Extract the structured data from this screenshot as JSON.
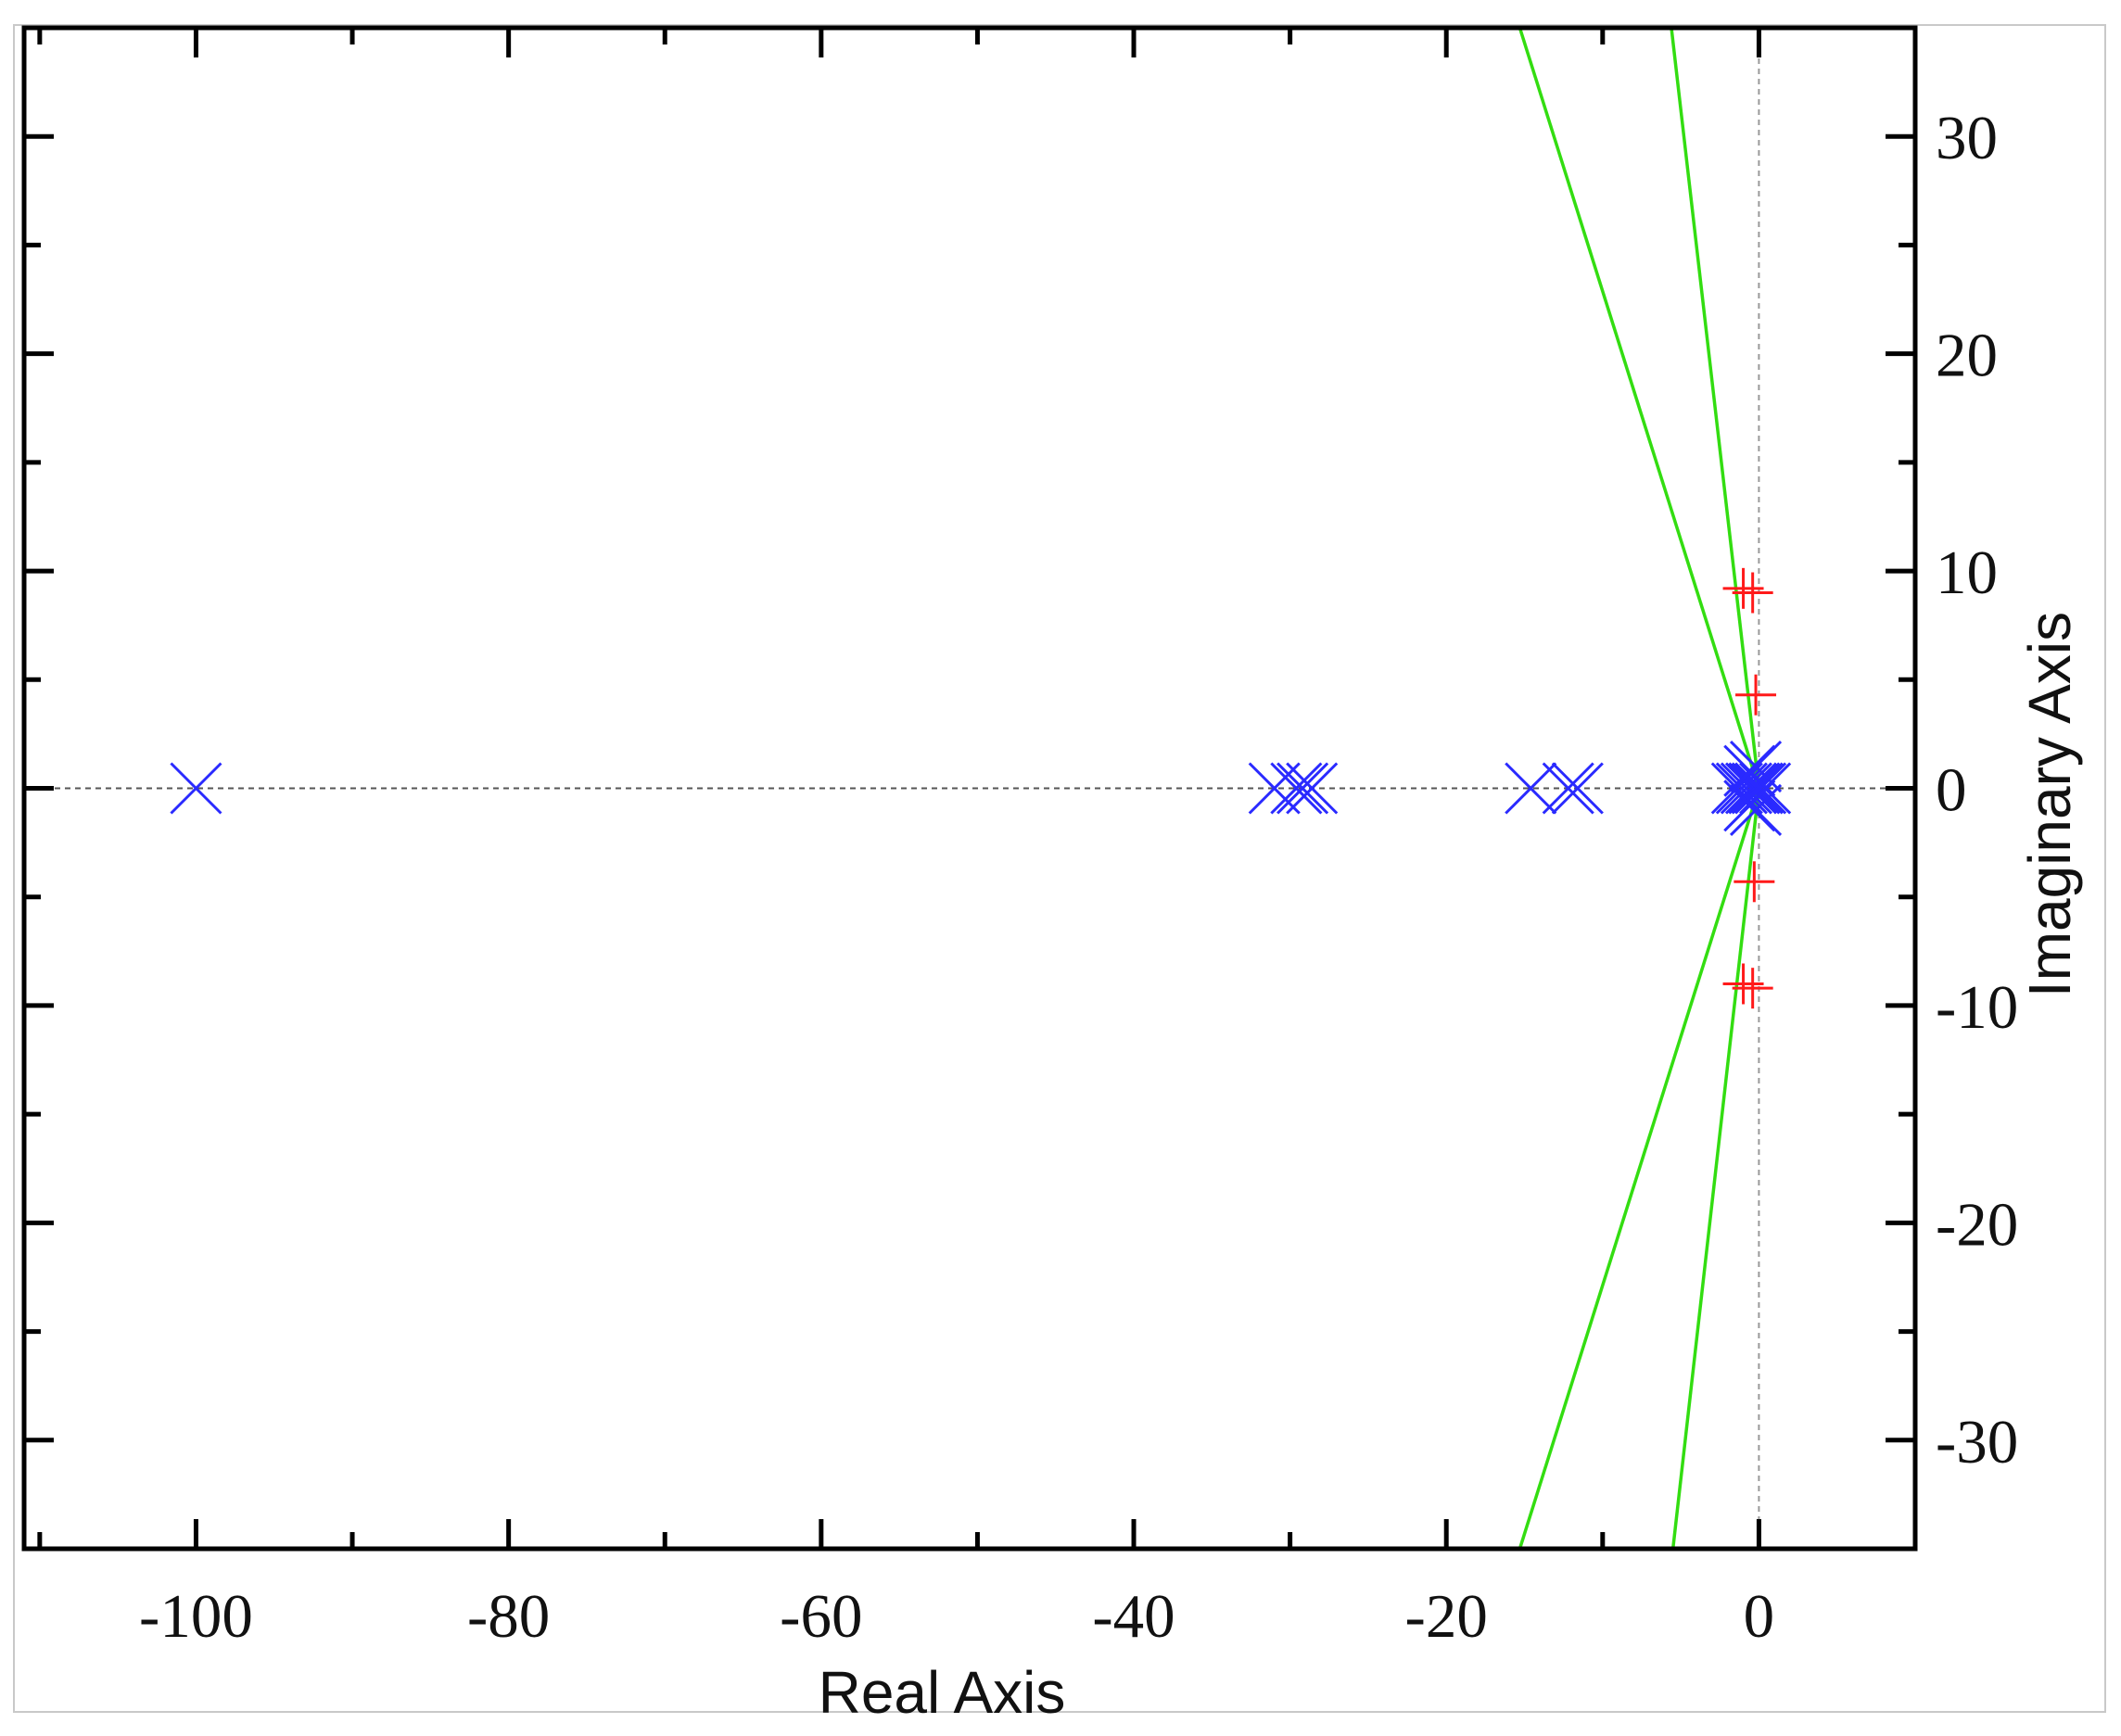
{
  "chart_data": {
    "type": "scatter",
    "title": "",
    "xlabel": "Real Axis",
    "ylabel": "Imaginary Axis",
    "xlim": [
      -111,
      10
    ],
    "ylim": [
      -35,
      35
    ],
    "x_ticks": [
      -100,
      -80,
      -60,
      -40,
      -20,
      0
    ],
    "y_ticks": [
      30,
      20,
      10,
      0,
      -10,
      -20,
      -30
    ],
    "grid": false,
    "legend": "none",
    "series": [
      {
        "marker": "x",
        "color": "#2a2aff",
        "points": [
          [
            -100,
            0
          ],
          [
            -31,
            0
          ],
          [
            -29.6,
            0
          ],
          [
            -29.2,
            0
          ],
          [
            -28.6,
            0
          ],
          [
            -14.6,
            0
          ],
          [
            -12.2,
            0
          ],
          [
            -11.6,
            0
          ],
          [
            -1.4,
            0
          ],
          [
            -1.1,
            0
          ],
          [
            -0.8,
            0
          ],
          [
            -0.5,
            0
          ],
          [
            -0.3,
            0
          ],
          [
            -0.1,
            0
          ],
          [
            0.1,
            0
          ],
          [
            0.4,
            0
          ],
          [
            -0.6,
            0.8
          ],
          [
            -0.6,
            -0.8
          ],
          [
            -0.2,
            1.0
          ],
          [
            -0.2,
            -1.0
          ]
        ]
      },
      {
        "marker": "+",
        "color": "#ff1a1a",
        "points": [
          [
            -1.0,
            9.2
          ],
          [
            -0.4,
            9.0
          ],
          [
            -0.2,
            4.3
          ],
          [
            -0.3,
            -4.3
          ],
          [
            -1.0,
            -9.0
          ],
          [
            -0.4,
            -9.2
          ]
        ]
      }
    ],
    "lines": [
      {
        "color": "#33dd11",
        "segments": [
          [
            [
              -15.3,
              35
            ],
            [
              0,
              0
            ]
          ],
          [
            [
              -5.6,
              35
            ],
            [
              0,
              0
            ]
          ],
          [
            [
              -15.3,
              -35
            ],
            [
              0,
              0
            ]
          ],
          [
            [
              -5.5,
              -35
            ],
            [
              0,
              0
            ]
          ]
        ]
      }
    ],
    "reference_lines": [
      {
        "orientation": "horizontal",
        "value": 0,
        "color": "#555555",
        "style": "dashed"
      },
      {
        "orientation": "vertical",
        "value": 0,
        "color": "#999999",
        "style": "dashed"
      }
    ]
  }
}
